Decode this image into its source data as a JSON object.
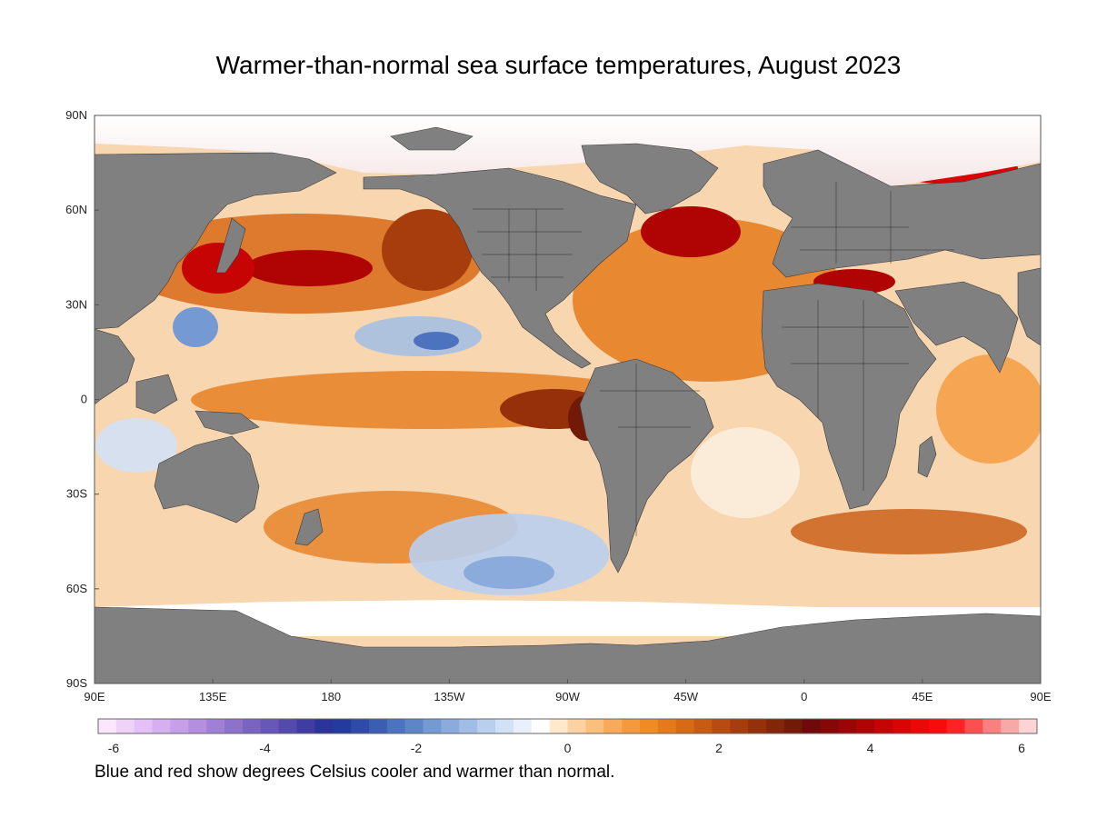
{
  "title": "Warmer-than-normal sea surface temperatures, August 2023",
  "caption": "Blue and red show degrees Celsius cooler and warmer than normal.",
  "map": {
    "latitude_labels": [
      "90N",
      "60N",
      "30N",
      "0",
      "30S",
      "60S",
      "90S"
    ],
    "longitude_labels": [
      "90E",
      "135E",
      "180",
      "135W",
      "90W",
      "45W",
      "0",
      "45E",
      "90E"
    ]
  },
  "colorbar": {
    "tick_labels": [
      "-6",
      "-4",
      "-2",
      "0",
      "2",
      "4",
      "6"
    ],
    "min": -6,
    "max": 6,
    "colors": [
      "#fbe7fb",
      "#efd2f8",
      "#e3c0f6",
      "#d5afef",
      "#c79fe9",
      "#b48fe0",
      "#a080d6",
      "#8d72cb",
      "#7a64c2",
      "#6757b8",
      "#5449ad",
      "#3f3ca3",
      "#2c3399",
      "#243a9e",
      "#2f4aa8",
      "#3d5db3",
      "#4d72bf",
      "#5f85c9",
      "#7499d3",
      "#8aabdc",
      "#a1bde5",
      "#b9cfee",
      "#d2e1f6",
      "#e8f0fb",
      "#ffffff",
      "#ffe8cc",
      "#fdd1a2",
      "#fbbf7c",
      "#f8a95a",
      "#f59a3c",
      "#f08a23",
      "#e57a1a",
      "#d86a16",
      "#c95a12",
      "#b84b0f",
      "#a73c0d",
      "#95300b",
      "#832509",
      "#731908",
      "#6f0a0a",
      "#850707",
      "#9a0505",
      "#b00404",
      "#c60404",
      "#d90505",
      "#ea0808",
      "#f80b0b",
      "#ff2222",
      "#fb5050",
      "#f98080",
      "#f9a8a8",
      "#fcd4d4"
    ]
  },
  "colors": {
    "land": "#808080",
    "ocean_neutral": "#fbf0e4",
    "ice": "#ffffff"
  }
}
